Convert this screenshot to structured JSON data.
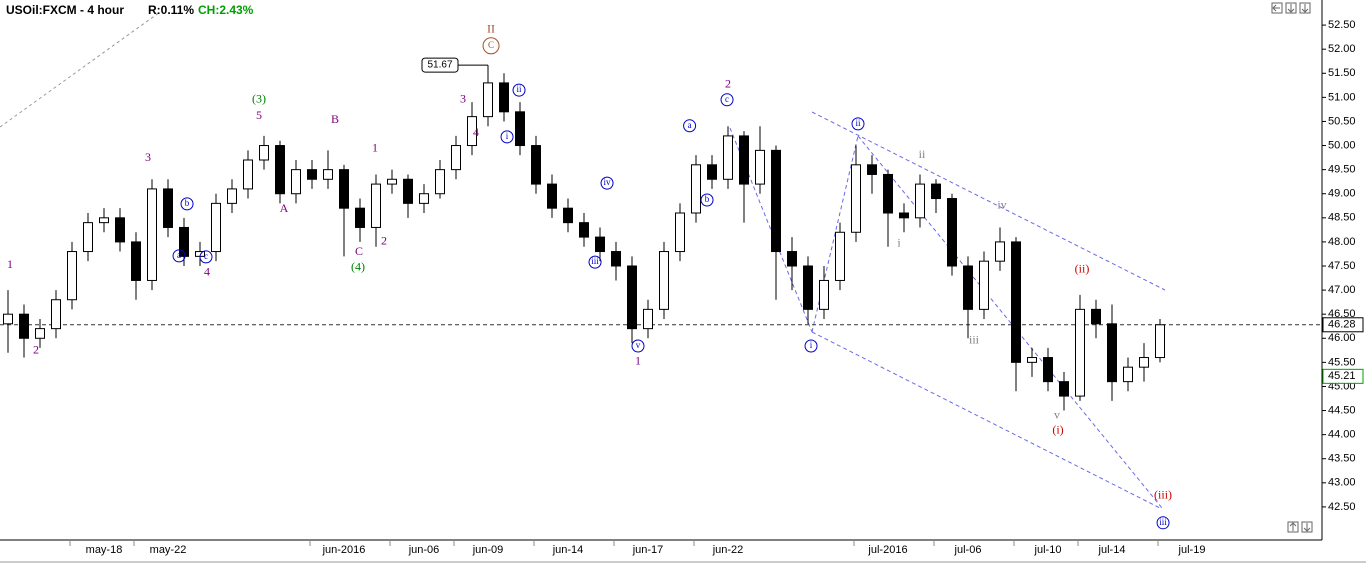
{
  "chart_data": {
    "type": "candlestick",
    "title": "USOil:FXCM - 4 hour",
    "range_stat": "R:0.11%",
    "change_stat": "CH:2.43%",
    "categories": [
      null,
      null,
      null,
      null,
      null,
      null,
      "may-18",
      null,
      null,
      null,
      "may-22",
      null,
      null,
      null,
      null,
      null,
      null,
      null,
      null,
      null,
      null,
      "jun-2016",
      null,
      null,
      null,
      null,
      "jun-06",
      null,
      null,
      null,
      "jun-09",
      null,
      null,
      null,
      null,
      "jun-14",
      null,
      null,
      null,
      null,
      "jun-17",
      null,
      null,
      null,
      null,
      "jun-22",
      null,
      null,
      null,
      null,
      null,
      null,
      null,
      null,
      null,
      "jul-2016",
      null,
      null,
      null,
      null,
      "jul-06",
      null,
      null,
      null,
      null,
      "jul-10",
      null,
      null,
      null,
      "jul-14",
      null,
      null,
      null,
      null,
      "jul-19",
      null,
      null,
      null,
      null,
      null,
      null,
      null
    ],
    "open": [
      46.3,
      46.5,
      46.0,
      46.2,
      46.8,
      47.8,
      48.4,
      48.5,
      48.0,
      47.2,
      49.1,
      48.3,
      47.7,
      47.8,
      48.8,
      49.1,
      49.7,
      50.0,
      49.0,
      49.5,
      49.3,
      49.5,
      48.7,
      48.3,
      49.2,
      49.3,
      48.8,
      49.0,
      49.5,
      50.0,
      50.6,
      51.3,
      50.7,
      50.0,
      49.2,
      48.7,
      48.4,
      48.1,
      47.8,
      47.5,
      46.2,
      46.6,
      47.8,
      48.6,
      49.6,
      49.3,
      50.2,
      49.2,
      49.9,
      47.8,
      47.5,
      46.6,
      47.2,
      48.2,
      49.6,
      49.4,
      48.6,
      48.5,
      49.2,
      48.9,
      47.5,
      46.6,
      47.6,
      48.0,
      45.5,
      45.6,
      45.1,
      44.8,
      46.6,
      46.3,
      45.1,
      45.4,
      45.6,
      null,
      null,
      null,
      null,
      null,
      null,
      null,
      null,
      null
    ],
    "high": [
      47.0,
      46.7,
      46.4,
      47.0,
      48.0,
      48.6,
      48.7,
      48.7,
      48.2,
      49.3,
      49.3,
      48.5,
      48.0,
      49.0,
      49.3,
      49.9,
      50.2,
      50.1,
      49.7,
      49.7,
      49.9,
      49.6,
      48.9,
      49.4,
      49.5,
      49.4,
      49.2,
      49.7,
      50.2,
      50.9,
      51.67,
      51.5,
      50.9,
      50.2,
      49.4,
      48.9,
      48.6,
      48.3,
      48.0,
      47.7,
      46.8,
      48.0,
      48.8,
      49.8,
      49.8,
      50.4,
      50.3,
      50.4,
      50.0,
      48.1,
      47.7,
      47.5,
      48.4,
      50.0,
      49.8,
      49.5,
      48.8,
      49.4,
      49.3,
      49.0,
      47.7,
      47.8,
      48.3,
      48.1,
      45.8,
      45.8,
      45.3,
      46.9,
      46.8,
      46.7,
      45.6,
      45.9,
      46.4,
      null,
      null,
      null,
      null,
      null,
      null,
      null,
      null,
      null
    ],
    "low": [
      45.7,
      45.6,
      45.8,
      46.0,
      46.6,
      47.6,
      48.2,
      47.8,
      46.8,
      47.0,
      48.1,
      47.5,
      47.5,
      47.6,
      48.6,
      48.9,
      49.5,
      48.8,
      48.8,
      49.1,
      49.1,
      47.7,
      48.0,
      47.9,
      49.0,
      48.5,
      48.6,
      48.9,
      49.3,
      49.8,
      50.4,
      50.5,
      49.8,
      49.0,
      48.5,
      48.2,
      47.9,
      47.6,
      47.2,
      45.9,
      46.0,
      46.4,
      47.6,
      48.4,
      49.1,
      49.1,
      48.4,
      49.0,
      46.8,
      47.0,
      46.3,
      46.4,
      47.0,
      48.0,
      49.0,
      47.9,
      48.2,
      48.3,
      48.6,
      47.3,
      46.0,
      46.4,
      47.4,
      44.9,
      45.2,
      44.9,
      44.5,
      44.7,
      46.0,
      44.7,
      44.9,
      45.1,
      45.5,
      null,
      null,
      null,
      null,
      null,
      null,
      null,
      null,
      null
    ],
    "close": [
      46.5,
      46.0,
      46.2,
      46.8,
      47.8,
      48.4,
      48.5,
      48.0,
      47.2,
      49.1,
      48.3,
      47.7,
      47.8,
      48.8,
      49.1,
      49.7,
      50.0,
      49.0,
      49.5,
      49.3,
      49.5,
      48.7,
      48.3,
      49.2,
      49.3,
      48.8,
      49.0,
      49.5,
      50.0,
      50.6,
      51.3,
      50.7,
      50.0,
      49.2,
      48.7,
      48.4,
      48.1,
      47.8,
      47.5,
      46.2,
      46.6,
      47.8,
      48.6,
      49.6,
      49.3,
      50.2,
      49.2,
      49.9,
      47.8,
      47.5,
      46.6,
      47.2,
      48.2,
      49.6,
      49.4,
      48.6,
      48.5,
      49.2,
      48.9,
      47.5,
      46.6,
      47.6,
      48.0,
      45.5,
      45.6,
      45.1,
      44.8,
      46.6,
      46.3,
      45.1,
      45.4,
      45.6,
      46.28,
      null,
      null,
      null,
      null,
      null,
      null,
      null,
      null,
      null
    ],
    "peak_index": 30,
    "last_price": 46.28,
    "marker_price": 45.21,
    "up_color": "#ffffff",
    "down_color": "#000000",
    "ylim": [
      42.0,
      53.0
    ],
    "yticks": [
      {
        "value": 42.5,
        "label": "42.50"
      },
      {
        "value": 43.0,
        "label": "43.00"
      },
      {
        "value": 43.5,
        "label": "43.50"
      },
      {
        "value": 44.0,
        "label": "44.00"
      },
      {
        "value": 44.5,
        "label": "44.50"
      },
      {
        "value": 45.0,
        "label": "45.00"
      },
      {
        "value": 45.5,
        "label": "45.50"
      },
      {
        "value": 46.0,
        "label": "46.00"
      },
      {
        "value": 46.5,
        "label": "46.50"
      },
      {
        "value": 47.0,
        "label": "47.00"
      },
      {
        "value": 47.5,
        "label": "47.50"
      },
      {
        "value": 48.0,
        "label": "48.00"
      },
      {
        "value": 48.5,
        "label": "48.50"
      },
      {
        "value": 49.0,
        "label": "49.00"
      },
      {
        "value": 49.5,
        "label": "49.50"
      },
      {
        "value": 50.0,
        "label": "50.00"
      },
      {
        "value": 50.5,
        "label": "50.50"
      },
      {
        "value": 51.0,
        "label": "51.00"
      },
      {
        "value": 51.5,
        "label": "51.50"
      },
      {
        "value": 52.0,
        "label": "52.00"
      },
      {
        "value": 52.5,
        "label": "52.50"
      }
    ],
    "grid": false,
    "annotations": [
      {
        "text": "1",
        "x": 0.125,
        "y": 47.52,
        "color": "#800080",
        "style": "plain"
      },
      {
        "text": "2",
        "x": 1.75,
        "y": 45.74,
        "color": "#800080",
        "style": "plain"
      },
      {
        "text": "3",
        "x": 8.75,
        "y": 49.74,
        "color": "#800080",
        "style": "plain"
      },
      {
        "text": "b",
        "x": 11.19,
        "y": 48.79,
        "color": "#0000cc",
        "style": "circled"
      },
      {
        "text": "a",
        "x": 10.69,
        "y": 47.71,
        "color": "#0000cc",
        "style": "circled"
      },
      {
        "text": "c",
        "x": 12.375,
        "y": 47.69,
        "color": "#0000cc",
        "style": "circled"
      },
      {
        "text": "4",
        "x": 12.44,
        "y": 47.36,
        "color": "#800080",
        "style": "plain"
      },
      {
        "text": "(3)",
        "x": 15.69,
        "y": 50.95,
        "color": "#008000",
        "style": "plain"
      },
      {
        "text": "5",
        "x": 15.69,
        "y": 50.61,
        "color": "#800080",
        "style": "plain"
      },
      {
        "text": "A",
        "x": 17.25,
        "y": 48.68,
        "color": "#800080",
        "style": "plain"
      },
      {
        "text": "B",
        "x": 20.44,
        "y": 50.53,
        "color": "#800080",
        "style": "plain"
      },
      {
        "text": "1",
        "x": 22.94,
        "y": 49.93,
        "color": "#800080",
        "style": "plain"
      },
      {
        "text": "C",
        "x": 21.94,
        "y": 47.79,
        "color": "#800080",
        "style": "plain"
      },
      {
        "text": "(4)",
        "x": 21.875,
        "y": 47.46,
        "color": "#008000",
        "style": "plain"
      },
      {
        "text": "2",
        "x": 23.5,
        "y": 48.0,
        "color": "#800080",
        "style": "plain"
      },
      {
        "text": "3",
        "x": 28.44,
        "y": 50.95,
        "color": "#800080",
        "style": "plain"
      },
      {
        "text": "4",
        "x": 29.25,
        "y": 50.26,
        "color": "#800080",
        "style": "plain"
      },
      {
        "text": "II",
        "x": 30.19,
        "y": 52.4,
        "color": "#a0522d",
        "style": "plain"
      },
      {
        "text": "C",
        "x": 30.19,
        "y": 52.07,
        "color": "#a0522d",
        "style": "circled"
      },
      {
        "text": "ii",
        "x": 31.94,
        "y": 51.15,
        "color": "#0000cc",
        "style": "circled"
      },
      {
        "text": "i",
        "x": 31.19,
        "y": 50.18,
        "color": "#0000cc",
        "style": "circled"
      },
      {
        "text": "iv",
        "x": 37.44,
        "y": 49.22,
        "color": "#0000cc",
        "style": "circled"
      },
      {
        "text": "iii",
        "x": 36.69,
        "y": 47.58,
        "color": "#0000cc",
        "style": "circled"
      },
      {
        "text": "v",
        "x": 39.375,
        "y": 45.84,
        "color": "#0000cc",
        "style": "circled"
      },
      {
        "text": "1",
        "x": 39.375,
        "y": 45.51,
        "color": "#800080",
        "style": "plain"
      },
      {
        "text": "a",
        "x": 42.6,
        "y": 50.41,
        "color": "#0000cc",
        "style": "circled"
      },
      {
        "text": "b",
        "x": 43.69,
        "y": 48.87,
        "color": "#0000cc",
        "style": "circled"
      },
      {
        "text": "2",
        "x": 45.0,
        "y": 51.26,
        "color": "#800080",
        "style": "plain"
      },
      {
        "text": "c",
        "x": 44.94,
        "y": 50.95,
        "color": "#0000cc",
        "style": "circled"
      },
      {
        "text": "ii",
        "x": 53.125,
        "y": 50.45,
        "color": "#0000cc",
        "style": "circled"
      },
      {
        "text": "i",
        "x": 50.19,
        "y": 45.84,
        "color": "#0000cc",
        "style": "circled"
      },
      {
        "text": "ii",
        "x": 57.125,
        "y": 49.8,
        "color": "#808080",
        "style": "plain"
      },
      {
        "text": "i",
        "x": 55.69,
        "y": 47.96,
        "color": "#808080",
        "style": "plain"
      },
      {
        "text": "iv",
        "x": 62.125,
        "y": 48.75,
        "color": "#808080",
        "style": "plain"
      },
      {
        "text": "iii",
        "x": 60.375,
        "y": 45.95,
        "color": "#808080",
        "style": "plain"
      },
      {
        "text": "(ii)",
        "x": 67.125,
        "y": 47.42,
        "color": "#cc0000",
        "style": "plain"
      },
      {
        "text": "v",
        "x": 65.56,
        "y": 44.39,
        "color": "#808080",
        "style": "plain"
      },
      {
        "text": "(i)",
        "x": 65.625,
        "y": 44.08,
        "color": "#cc0000",
        "style": "plain"
      },
      {
        "text": "(iii)",
        "x": 72.19,
        "y": 42.73,
        "color": "#cc0000",
        "style": "plain"
      },
      {
        "text": "iii",
        "x": 72.19,
        "y": 42.17,
        "color": "#0000cc",
        "style": "circled"
      }
    ]
  }
}
